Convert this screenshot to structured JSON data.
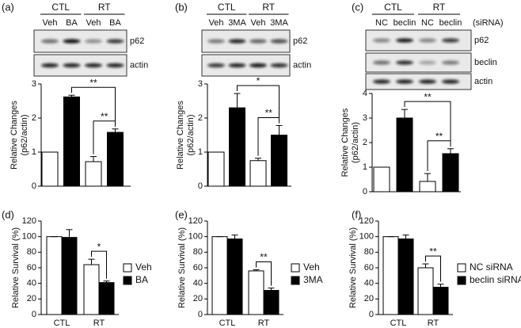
{
  "chart_data": [
    {
      "type": "bar",
      "panel": "(a)",
      "groups": [
        "CTL",
        "RT"
      ],
      "categories": [
        "Veh",
        "BA",
        "Veh",
        "BA"
      ],
      "blots": [
        "p62",
        "actin"
      ],
      "ylabel": [
        "Relative Changes",
        "(p62/actin)"
      ],
      "values": [
        1,
        2.62,
        0.72,
        1.58
      ],
      "errors": [
        0,
        0.05,
        0.15,
        0.1
      ],
      "colors": [
        "#ffffff",
        "#000000",
        "#ffffff",
        "#000000"
      ],
      "ylim": [
        0,
        3
      ],
      "yticks": [
        0,
        1,
        2,
        3
      ],
      "annotations": [
        {
          "text": "**",
          "bars": [
            1,
            3
          ]
        },
        {
          "text": "**",
          "bars": [
            2,
            3
          ]
        }
      ]
    },
    {
      "type": "bar",
      "panel": "(b)",
      "groups": [
        "CTL",
        "RT"
      ],
      "categories": [
        "Veh",
        "3MA",
        "Veh",
        "3MA"
      ],
      "blots": [
        "p62",
        "actin"
      ],
      "ylabel": [
        "Relative Changes",
        "(p62/actin)"
      ],
      "values": [
        1,
        2.3,
        0.75,
        1.5
      ],
      "errors": [
        0,
        0.42,
        0.07,
        0.28
      ],
      "colors": [
        "#ffffff",
        "#000000",
        "#ffffff",
        "#000000"
      ],
      "ylim": [
        0,
        3
      ],
      "yticks": [
        0,
        1,
        2,
        3
      ],
      "annotations": [
        {
          "text": "*",
          "bars": [
            1,
            3
          ]
        },
        {
          "text": "**",
          "bars": [
            2,
            3
          ]
        }
      ]
    },
    {
      "type": "bar",
      "panel": "(c)",
      "groups": [
        "CTL",
        "RT"
      ],
      "categories": [
        "NC",
        "beclin",
        "NC",
        "beclin"
      ],
      "lane_note": "(siRNA)",
      "blots": [
        "p62",
        "beclin",
        "actin"
      ],
      "ylabel": [
        "Relative Changes",
        "(p62/actin)"
      ],
      "values": [
        1,
        3.0,
        0.42,
        1.55
      ],
      "errors": [
        0,
        0.35,
        0.32,
        0.2
      ],
      "colors": [
        "#ffffff",
        "#000000",
        "#ffffff",
        "#000000"
      ],
      "ylim": [
        0,
        4
      ],
      "yticks": [
        0,
        1,
        2,
        3,
        4
      ],
      "annotations": [
        {
          "text": "**",
          "bars": [
            1,
            3
          ]
        },
        {
          "text": "**",
          "bars": [
            2,
            3
          ]
        }
      ]
    },
    {
      "type": "groupedbar",
      "panel": "(d)",
      "categories": [
        "CTL",
        "RT"
      ],
      "ylabel": "Relative Survival (%)",
      "series": [
        {
          "name": "Veh",
          "color": "#ffffff",
          "values": [
            100,
            64
          ],
          "errors": [
            0,
            7
          ]
        },
        {
          "name": "BA",
          "color": "#000000",
          "values": [
            99,
            41
          ],
          "errors": [
            10,
            2
          ]
        }
      ],
      "ylim": [
        0,
        120
      ],
      "yticks": [
        0,
        20,
        40,
        60,
        80,
        100,
        120
      ],
      "annotations": [
        {
          "text": "*",
          "category": "RT"
        }
      ]
    },
    {
      "type": "groupedbar",
      "panel": "(e)",
      "categories": [
        "CTL",
        "RT"
      ],
      "ylabel": "Relative Survival (%)",
      "series": [
        {
          "name": "Veh",
          "color": "#ffffff",
          "values": [
            100,
            56
          ],
          "errors": [
            0,
            1.5
          ]
        },
        {
          "name": "3MA",
          "color": "#000000",
          "values": [
            97,
            31
          ],
          "errors": [
            5,
            3
          ]
        }
      ],
      "ylim": [
        0,
        120
      ],
      "yticks": [
        0,
        20,
        40,
        60,
        80,
        100,
        120
      ],
      "annotations": [
        {
          "text": "**",
          "category": "RT"
        }
      ]
    },
    {
      "type": "groupedbar",
      "panel": "(f)",
      "categories": [
        "CTL",
        "RT"
      ],
      "ylabel": "Relative Survival (%)",
      "series": [
        {
          "name": "NC siRNA",
          "color": "#ffffff",
          "values": [
            100,
            60
          ],
          "errors": [
            0,
            5
          ]
        },
        {
          "name": "beclin siRNA",
          "color": "#000000",
          "values": [
            97,
            35
          ],
          "errors": [
            5,
            4
          ]
        }
      ],
      "ylim": [
        0,
        120
      ],
      "yticks": [
        0,
        20,
        40,
        60,
        80,
        100,
        120
      ],
      "annotations": [
        {
          "text": "**",
          "category": "RT"
        }
      ]
    }
  ]
}
